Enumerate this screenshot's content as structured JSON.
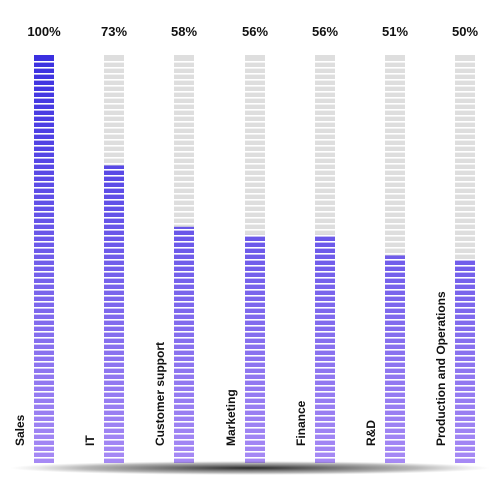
{
  "chart_data": {
    "type": "bar",
    "categories": [
      "Sales",
      "IT",
      "Customer support",
      "Marketing",
      "Finance",
      "R&D",
      "Production and Operations"
    ],
    "values": [
      100,
      73,
      58,
      56,
      56,
      51,
      50
    ],
    "value_labels": [
      "100%",
      "73%",
      "58%",
      "56%",
      "56%",
      "51%",
      "50%"
    ],
    "ylim": [
      0,
      100
    ],
    "unit": "%",
    "grid": false,
    "legend": "none",
    "orientation": "vertical",
    "category_label_rotation": -90
  },
  "colors": {
    "bar_top": "#3a2fe0",
    "bar_bottom": "#a78af5",
    "track": "#dedede",
    "baseline_shadow": "#1a1a1a"
  }
}
